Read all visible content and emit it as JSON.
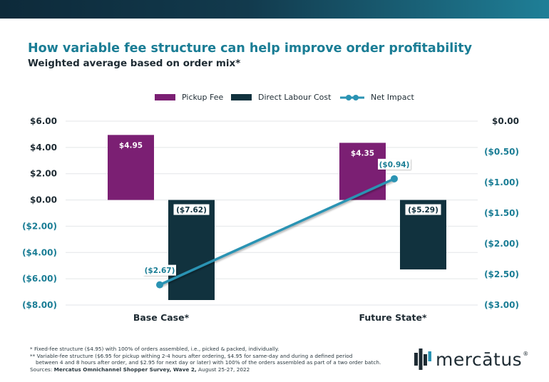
{
  "colors": {
    "pickup": "#7b1f73",
    "labour": "#11323e",
    "net": "#2a93b3",
    "teal_text": "#1a7d95",
    "dark_text": "#1e2b33"
  },
  "chart_data": {
    "type": "bar+line",
    "title": "How variable fee structure can help improve order profitability",
    "subtitle": "Weighted average based on order mix*",
    "categories": [
      "Base Case*",
      "Future State*"
    ],
    "series": [
      {
        "name": "Pickup Fee",
        "axis": "left",
        "values": [
          4.95,
          4.35
        ],
        "labels": [
          "$4.95",
          "$4.35"
        ]
      },
      {
        "name": "Direct Labour Cost",
        "axis": "left",
        "values": [
          -7.62,
          -5.29
        ],
        "labels": [
          "($7.62)",
          "($5.29)"
        ]
      },
      {
        "name": "Net Impact",
        "axis": "right",
        "kind": "line",
        "values": [
          -2.67,
          -0.94
        ],
        "labels": [
          "($2.67)",
          "($0.94)"
        ]
      }
    ],
    "left_axis": {
      "ylim": [
        -8,
        6
      ],
      "ticks": [
        6,
        4,
        2,
        0,
        -2,
        -4,
        -6,
        -8
      ],
      "tick_labels": [
        "$6.00",
        "$4.00",
        "$2.00",
        "$0.00",
        "($2.00)",
        "($4.00)",
        "($6.00)",
        "($8.00)"
      ]
    },
    "right_axis": {
      "ylim": [
        -3,
        0
      ],
      "ticks": [
        0,
        -0.5,
        -1,
        -1.5,
        -2,
        -2.5,
        -3
      ],
      "tick_labels": [
        "$0.00",
        "($0.50)",
        "($1.00)",
        "($1.50)",
        "($2.00)",
        "($2.50)",
        "($3.00)"
      ]
    },
    "legend_position": "top-center",
    "grid": true
  },
  "footnotes": {
    "line1": "*   Fixed-fee structure ($4.95) with 100% of orders assembled, i.e., picked & packed, individually.",
    "line2": "** Variable-fee structure ($6.95 for pickup withing 2-4 hours after ordering, $4.95 for same-day and during a defined period",
    "line3": "between 4 and 8 hours after order, and $2.95 for next day or later) with 100% of the orders assembled as part of a two order batch.",
    "sources_prefix": "Sources: ",
    "sources_name": "Mercatus Omnichannel Shopper Survey, Wave 2,",
    "sources_date": " August 25-27, 2022"
  },
  "logo": {
    "word": "mercātus",
    "reg": "®"
  }
}
